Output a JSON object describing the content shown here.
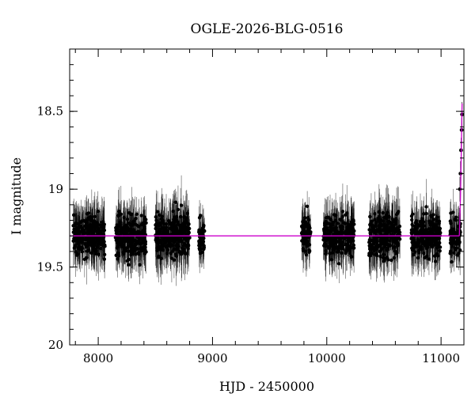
{
  "chart_data": {
    "type": "scatter",
    "title": "OGLE-2026-BLG-0516",
    "xlabel": "HJD - 2450000",
    "ylabel": "I magnitude",
    "xlim": [
      7750,
      11200
    ],
    "ylim": [
      20.0,
      18.1
    ],
    "y_inverted": true,
    "x_ticks": [
      8000,
      9000,
      10000,
      11000
    ],
    "x_tick_labels": [
      "8000",
      "9000",
      "10000",
      "11000"
    ],
    "y_ticks": [
      18.5,
      19,
      19.5,
      20
    ],
    "y_tick_labels": [
      "18.5",
      "19",
      "19.5",
      "20"
    ],
    "grid": false,
    "baseline_magnitude": 19.3,
    "model_color": "#cc00cc",
    "marker_color": "#000000",
    "seasons": [
      {
        "hjd_start": 7780,
        "hjd_end": 8060,
        "mean_mag": 19.3,
        "scatter": 0.13
      },
      {
        "hjd_start": 8150,
        "hjd_end": 8420,
        "mean_mag": 19.3,
        "scatter": 0.13
      },
      {
        "hjd_start": 8500,
        "hjd_end": 8800,
        "mean_mag": 19.3,
        "scatter": 0.14
      },
      {
        "hjd_start": 8880,
        "hjd_end": 8930,
        "mean_mag": 19.3,
        "scatter": 0.11
      },
      {
        "hjd_start": 9780,
        "hjd_end": 9860,
        "mean_mag": 19.3,
        "scatter": 0.12
      },
      {
        "hjd_start": 9970,
        "hjd_end": 10240,
        "mean_mag": 19.3,
        "scatter": 0.13
      },
      {
        "hjd_start": 10370,
        "hjd_end": 10640,
        "mean_mag": 19.3,
        "scatter": 0.14
      },
      {
        "hjd_start": 10740,
        "hjd_end": 11000,
        "mean_mag": 19.3,
        "scatter": 0.13
      },
      {
        "hjd_start": 11080,
        "hjd_end": 11170,
        "mean_mag": 19.3,
        "scatter": 0.12
      }
    ],
    "rise": [
      {
        "hjd": 11165,
        "mag": 19.0
      },
      {
        "hjd": 11170,
        "mag": 18.9
      },
      {
        "hjd": 11175,
        "mag": 18.75
      },
      {
        "hjd": 11180,
        "mag": 18.62
      },
      {
        "hjd": 11184,
        "mag": 18.52
      }
    ]
  }
}
